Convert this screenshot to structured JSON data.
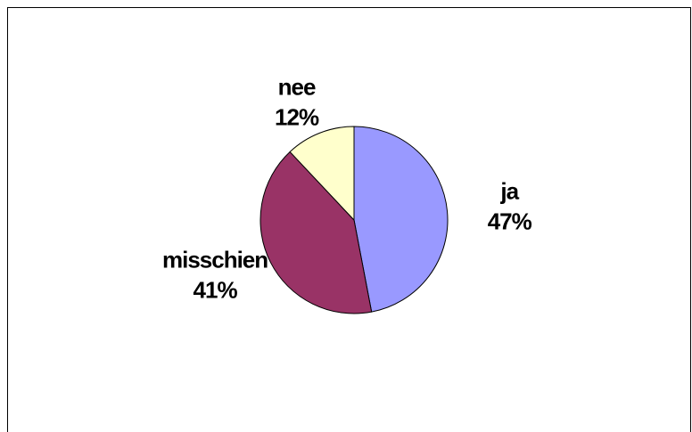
{
  "chart_data": {
    "type": "pie",
    "categories": [
      "ja",
      "misschien",
      "nee"
    ],
    "values": [
      47,
      41,
      12
    ],
    "value_labels": [
      "47%",
      "41%",
      "12%"
    ],
    "colors": [
      "#9999ff",
      "#993366",
      "#ffffcc"
    ]
  }
}
